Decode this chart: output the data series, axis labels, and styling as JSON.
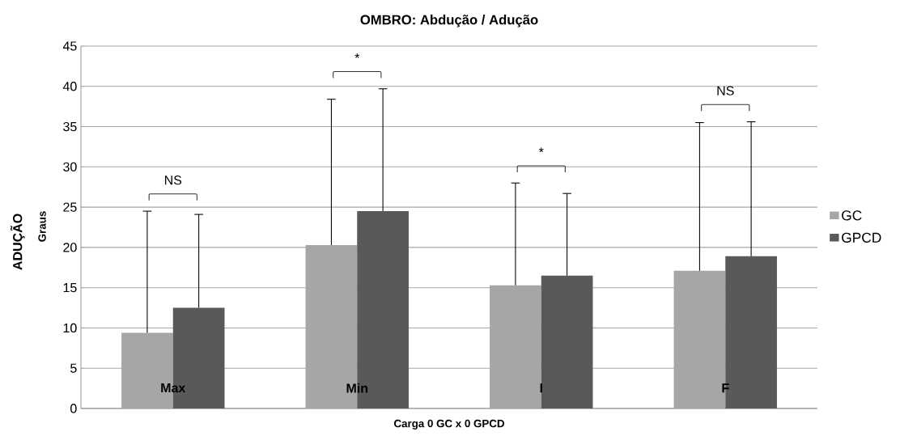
{
  "chart_data": {
    "type": "bar",
    "title": "OMBRO: Abdução / Adução",
    "xlabel": "Carga 0 GC x 0 GPCD",
    "ylabel": "ADUÇÃO",
    "categories": [
      "Max",
      "Min",
      "I",
      "F"
    ],
    "series": [
      {
        "name": "GC",
        "color": "#a6a6a6",
        "values": [
          9.4,
          20.3,
          15.3,
          17.1
        ],
        "errors": [
          [
            9.4,
            24.5
          ],
          [
            20.3,
            38.4
          ],
          [
            15.3,
            28.0
          ],
          [
            17.1,
            35.5
          ]
        ]
      },
      {
        "name": "GPCD",
        "color": "#595959",
        "values": [
          12.5,
          24.5,
          16.5,
          18.9
        ],
        "errors": [
          [
            12.5,
            24.1
          ],
          [
            24.5,
            39.7
          ],
          [
            16.5,
            26.7
          ],
          [
            18.9,
            35.6
          ]
        ]
      }
    ],
    "annotations": [
      "Graus",
      "NS",
      "*",
      "*",
      "NS"
    ],
    "ylim": [
      0,
      45
    ],
    "yticks": [
      0,
      5,
      10,
      15,
      20,
      25,
      30,
      35,
      40,
      45
    ],
    "grid": "y",
    "legend": "right"
  }
}
